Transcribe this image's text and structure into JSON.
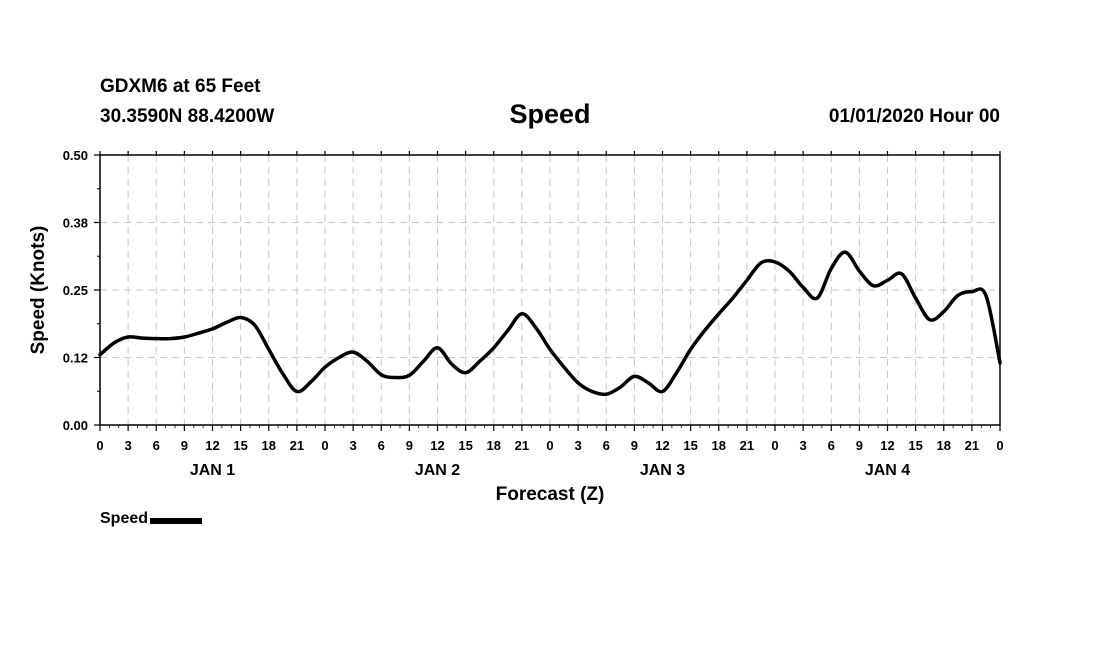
{
  "header": {
    "station": "GDXM6 at 65 Feet",
    "coords": "30.3590N 88.4200W",
    "title": "Speed",
    "datetime": "01/01/2020 Hour 00"
  },
  "legend": {
    "label": "Speed",
    "color": "#000000"
  },
  "chart_data": {
    "type": "line",
    "title": "Speed",
    "xlabel": "Forecast (Z)",
    "ylabel": "Speed (Knots)",
    "ylim": [
      0,
      0.5
    ],
    "xlim": [
      0,
      96
    ],
    "x_unit": "forecast hours from 01/01/2020 00Z",
    "yticks": [
      "0.00",
      "0.12",
      "0.25",
      "0.38",
      "0.50"
    ],
    "xtick_labels": [
      "0",
      "3",
      "6",
      "9",
      "12",
      "15",
      "18",
      "21",
      "0",
      "3",
      "6",
      "9",
      "12",
      "15",
      "18",
      "21",
      "0",
      "3",
      "6",
      "9",
      "12",
      "15",
      "18",
      "21",
      "0",
      "3",
      "6",
      "9",
      "12",
      "15",
      "18",
      "21",
      "0"
    ],
    "day_labels": [
      {
        "label": "JAN 1",
        "hour": 12
      },
      {
        "label": "JAN 2",
        "hour": 36
      },
      {
        "label": "JAN 3",
        "hour": 60
      },
      {
        "label": "JAN 4",
        "hour": 84
      }
    ],
    "grid": true,
    "legend_position": "bottom-left",
    "series": [
      {
        "name": "Speed",
        "color": "#000000",
        "x": [
          0,
          1.5,
          3,
          4.5,
          6,
          7.5,
          9,
          10.5,
          12,
          13.5,
          15,
          16.5,
          18,
          19.5,
          21,
          22.5,
          24,
          25.5,
          27,
          28.5,
          30,
          31.5,
          33,
          34.5,
          36,
          37.5,
          39,
          40.5,
          42,
          43.5,
          45,
          46.5,
          48,
          49.5,
          51,
          52.5,
          54,
          55.5,
          57,
          58.5,
          60,
          61.5,
          63,
          64.5,
          66,
          67.5,
          69,
          70.5,
          72,
          73.5,
          75,
          76.5,
          78,
          79.5,
          81,
          82.5,
          84,
          85.5,
          87,
          88.5,
          90,
          91.5,
          93,
          94.5,
          96
        ],
        "values": [
          0.13,
          0.152,
          0.163,
          0.161,
          0.16,
          0.16,
          0.163,
          0.17,
          0.178,
          0.19,
          0.199,
          0.185,
          0.14,
          0.095,
          0.062,
          0.08,
          0.107,
          0.125,
          0.135,
          0.118,
          0.093,
          0.088,
          0.092,
          0.118,
          0.143,
          0.113,
          0.097,
          0.118,
          0.143,
          0.175,
          0.206,
          0.18,
          0.14,
          0.107,
          0.078,
          0.062,
          0.057,
          0.07,
          0.09,
          0.078,
          0.062,
          0.097,
          0.14,
          0.175,
          0.206,
          0.235,
          0.268,
          0.3,
          0.302,
          0.285,
          0.255,
          0.235,
          0.29,
          0.32,
          0.285,
          0.258,
          0.268,
          0.28,
          0.235,
          0.195,
          0.21,
          0.24,
          0.247,
          0.24,
          0.115
        ]
      }
    ]
  }
}
